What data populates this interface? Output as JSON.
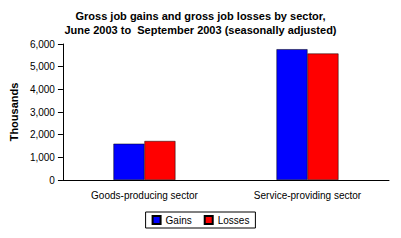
{
  "chart_data": {
    "type": "bar",
    "title": "Gross job gains and gross job losses by sector,\nJune 2003 to  September 2003 (seasonally adjusted)",
    "y_label": "Thousands",
    "categories": [
      "Goods-producing sector",
      "Service-providing sector"
    ],
    "series": [
      {
        "name": "Gains",
        "color": "#0000ff",
        "values": [
          1600,
          5770
        ]
      },
      {
        "name": "Losses",
        "color": "#ff0000",
        "values": [
          1720,
          5580
        ]
      }
    ],
    "ylim": [
      0,
      6000
    ],
    "yticks": [
      0,
      {
        "value": 1000,
        "label": "1,000"
      },
      {
        "value": 2000,
        "label": "2,000"
      },
      {
        "value": 3000,
        "label": "3,000"
      },
      {
        "value": 4000,
        "label": "4,000"
      },
      {
        "value": 5000,
        "label": "5,000"
      },
      {
        "value": 6000,
        "label": "6,000"
      }
    ],
    "grid": false,
    "legend": "bottom"
  }
}
